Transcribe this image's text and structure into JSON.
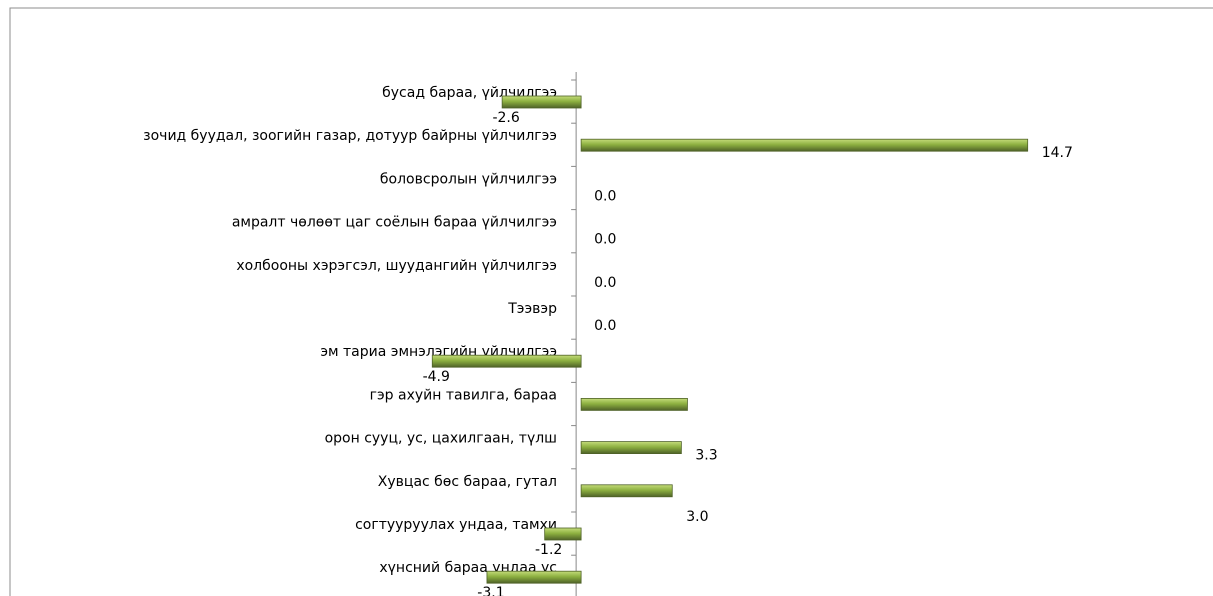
{
  "chart_data": {
    "type": "bar",
    "orientation": "horizontal",
    "categories": [
      "бусад бараа, үйлчилгээ",
      "зочид буудал, зоогийн газар, дотуур байрны үйлчилгээ",
      "боловсролын үйлчилгээ",
      "амралт чөлөөт цаг соёлын бараа  үйлчилгээ",
      "холбооны хэрэгсэл, шуудангийн үйлчилгээ",
      "Тээвэр",
      "эм тариа эмнэлэгийн үйлчилгээ",
      "гэр ахуйн тавилга, бараа",
      "орон сууц, ус, цахилгаан, түлш",
      "Хувцас бөс бараа,  гутал",
      "согтууруулах ундаа, тамхи",
      "хүнсний бараа ундаа ус"
    ],
    "values": [
      -2.6,
      14.7,
      0.0,
      0.0,
      0.0,
      0.0,
      -4.9,
      3.5,
      3.3,
      3.0,
      -1.2,
      -3.1
    ],
    "value_labels": [
      "-2.6",
      "14.7",
      "0.0",
      "0.0",
      "0.0",
      "0.0",
      "-4.9",
      null,
      "3.3",
      "3.0",
      "-1.2",
      "-3.1"
    ],
    "color": "#8db040",
    "xlim": [
      -18.8,
      20.8
    ],
    "grid": false
  }
}
